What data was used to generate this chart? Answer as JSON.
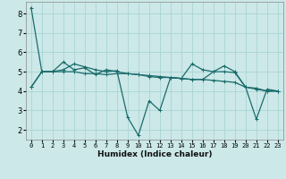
{
  "xlabel": "Humidex (Indice chaleur)",
  "bg_color": "#cce8e8",
  "grid_color": "#aad4d4",
  "line_color": "#1a6b6b",
  "xlim": [
    -0.5,
    23.5
  ],
  "ylim": [
    1.5,
    8.6
  ],
  "yticks": [
    2,
    3,
    4,
    5,
    6,
    7,
    8
  ],
  "xticks": [
    0,
    1,
    2,
    3,
    4,
    5,
    6,
    7,
    8,
    9,
    10,
    11,
    12,
    13,
    14,
    15,
    16,
    17,
    18,
    19,
    20,
    21,
    22,
    23
  ],
  "series": [
    [
      8.3,
      5.0,
      5.0,
      5.0,
      5.0,
      4.9,
      4.9,
      4.85,
      4.9,
      4.9,
      4.85,
      4.8,
      4.75,
      4.7,
      4.65,
      4.6,
      4.6,
      4.55,
      4.5,
      4.45,
      4.2,
      4.1,
      4.0,
      4.0
    ],
    [
      4.2,
      5.0,
      5.0,
      5.5,
      5.1,
      5.2,
      4.85,
      5.1,
      5.0,
      4.9,
      4.85,
      4.75,
      4.7,
      4.7,
      4.65,
      4.6,
      4.6,
      5.0,
      5.3,
      5.0,
      4.2,
      4.15,
      4.0,
      4.0
    ],
    [
      4.2,
      5.0,
      5.0,
      5.1,
      5.4,
      5.25,
      5.1,
      5.0,
      5.05,
      2.65,
      1.72,
      3.5,
      3.0,
      4.7,
      4.65,
      5.4,
      5.1,
      5.0,
      5.0,
      4.95,
      4.2,
      2.55,
      4.1,
      4.0
    ]
  ]
}
